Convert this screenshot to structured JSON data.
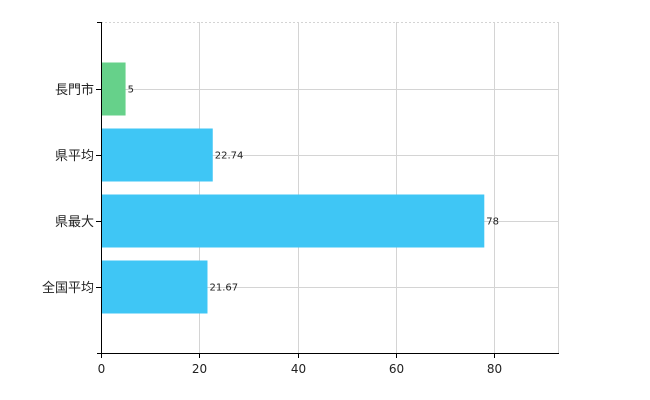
{
  "chart_data": {
    "type": "bar",
    "orientation": "horizontal",
    "categories": [
      "長門市",
      "県平均",
      "県最大",
      "全国平均"
    ],
    "values": [
      5,
      22.74,
      78,
      21.67
    ],
    "value_labels": [
      "5",
      "22.74",
      "78",
      "21.67"
    ],
    "bar_colors": [
      "#66d18a",
      "#3fc6f5",
      "#3fc6f5",
      "#3fc6f5"
    ],
    "xlim": [
      0,
      93
    ],
    "x_ticks": [
      0,
      20,
      40,
      60,
      80
    ],
    "x_tick_labels": [
      "0",
      "20",
      "40",
      "60",
      "80"
    ],
    "grid": true,
    "legend": "none",
    "title": "",
    "xlabel": "",
    "ylabel": ""
  }
}
